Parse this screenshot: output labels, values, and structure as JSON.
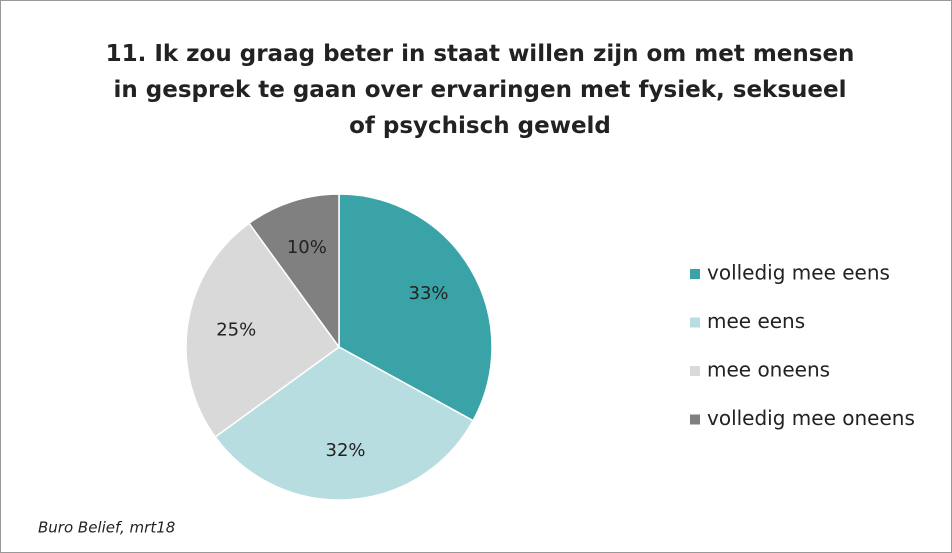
{
  "chart_data": {
    "type": "pie",
    "title": "11. Ik zou graag beter in staat willen zijn om met mensen in gesprek te gaan over ervaringen met fysiek, seksueel of psychisch geweld",
    "categories": [
      "volledig mee eens",
      "mee eens",
      "mee oneens",
      "volledig mee oneens"
    ],
    "values": [
      33,
      32,
      25,
      10
    ],
    "value_labels": [
      "33%",
      "32%",
      "25%",
      "10%"
    ],
    "colors": [
      "#3aa3a8",
      "#b8dde1",
      "#d9d9d9",
      "#808080"
    ],
    "legend": "right",
    "annotation": "Buro Belief, mrt18"
  }
}
